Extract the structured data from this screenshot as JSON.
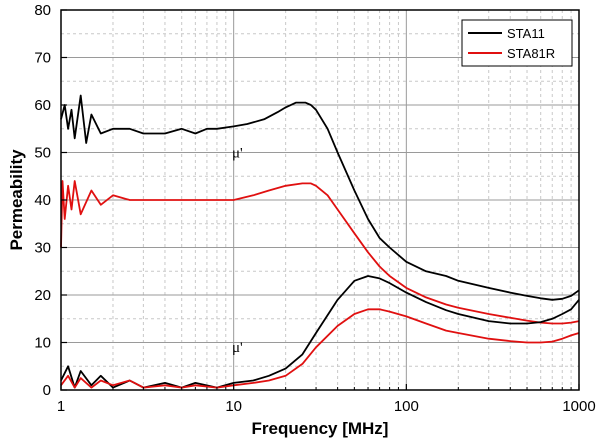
{
  "chart_data": {
    "type": "line",
    "xlabel": "Frequency [MHz]",
    "ylabel": "Permeability",
    "xscale": "log",
    "xlim": [
      1,
      1000
    ],
    "ylim": [
      0,
      80
    ],
    "xticks": [
      1,
      10,
      100,
      1000
    ],
    "xtick_labels": [
      "1",
      "10",
      "100",
      "1000"
    ],
    "yticks": [
      0,
      10,
      20,
      30,
      40,
      50,
      60,
      70,
      80
    ],
    "ytick_labels": [
      "0",
      "10",
      "20",
      "30",
      "40",
      "50",
      "60",
      "70",
      "80"
    ],
    "grid": true,
    "legend": "top-right",
    "annotations": [
      {
        "text": "μ'",
        "x": 10.5,
        "y": 49
      },
      {
        "text": "μ'",
        "x": 10.5,
        "y": 8
      }
    ],
    "series": [
      {
        "name": "STA11",
        "color": "#000000",
        "x": [
          1,
          1.05,
          1.1,
          1.15,
          1.2,
          1.3,
          1.4,
          1.5,
          1.7,
          2,
          2.5,
          3,
          4,
          5,
          6,
          7,
          8,
          10,
          12,
          15,
          18,
          20,
          23,
          26,
          28,
          30,
          35,
          40,
          50,
          60,
          70,
          80,
          100,
          130,
          170,
          200,
          300,
          400,
          500,
          600,
          700,
          800,
          900,
          1000
        ],
        "y": [
          57,
          60,
          55,
          59,
          53,
          62,
          52,
          58,
          54,
          55,
          55,
          54,
          54,
          55,
          54,
          55,
          55,
          55.5,
          56,
          57,
          58.5,
          59.5,
          60.5,
          60.5,
          60,
          59,
          55,
          50,
          42,
          36,
          32,
          30,
          27,
          25,
          24,
          23,
          21.5,
          20.5,
          19.8,
          19.3,
          19,
          19.2,
          19.8,
          21
        ]
      },
      {
        "name": "STA81R",
        "color": "#e01010",
        "x": [
          1,
          1.02,
          1.05,
          1.1,
          1.15,
          1.2,
          1.3,
          1.5,
          1.7,
          2,
          2.5,
          3,
          4,
          5,
          7,
          10,
          13,
          16,
          20,
          25,
          28,
          30,
          35,
          40,
          50,
          60,
          70,
          80,
          100,
          130,
          170,
          200,
          300,
          400,
          500,
          600,
          700,
          800,
          900,
          1000
        ],
        "y": [
          30,
          44,
          36,
          43,
          38,
          44,
          37,
          42,
          39,
          41,
          40,
          40,
          40,
          40,
          40,
          40,
          41,
          42,
          43,
          43.5,
          43.5,
          43,
          41,
          38,
          33,
          29,
          26,
          24,
          21.5,
          19.5,
          18,
          17.3,
          16,
          15.2,
          14.6,
          14.2,
          14,
          14,
          14.2,
          14.5
        ]
      },
      {
        "name": "STA11",
        "color": "#000000",
        "x": [
          1,
          1.1,
          1.2,
          1.3,
          1.5,
          1.7,
          2,
          2.5,
          3,
          4,
          5,
          6,
          8,
          10,
          13,
          16,
          20,
          25,
          30,
          40,
          50,
          60,
          70,
          80,
          100,
          130,
          170,
          200,
          300,
          400,
          500,
          600,
          700,
          800,
          900,
          1000
        ],
        "y": [
          2,
          5,
          0.5,
          4,
          1,
          3,
          0.5,
          2,
          0.5,
          1.5,
          0.5,
          1.5,
          0.5,
          1.5,
          2,
          3,
          4.5,
          7.5,
          12,
          19,
          23,
          24,
          23.5,
          22.5,
          20.5,
          18.5,
          16.8,
          16,
          14.5,
          14,
          14,
          14.3,
          15,
          16,
          17,
          19
        ]
      },
      {
        "name": "STA81R",
        "color": "#e01010",
        "x": [
          1,
          1.1,
          1.2,
          1.3,
          1.5,
          1.7,
          2,
          2.5,
          3,
          4,
          5,
          6,
          8,
          10,
          13,
          16,
          20,
          25,
          30,
          40,
          50,
          60,
          70,
          80,
          100,
          130,
          170,
          200,
          300,
          400,
          500,
          600,
          700,
          800,
          900,
          1000
        ],
        "y": [
          1,
          3,
          0.5,
          2.5,
          0.5,
          2,
          1,
          2,
          0.5,
          1,
          0.5,
          1,
          0.5,
          1,
          1.5,
          2,
          3,
          5.5,
          9,
          13.5,
          16,
          17,
          17,
          16.5,
          15.5,
          14,
          12.5,
          12,
          10.8,
          10.3,
          10,
          10,
          10.2,
          10.8,
          11.5,
          12
        ]
      }
    ]
  }
}
